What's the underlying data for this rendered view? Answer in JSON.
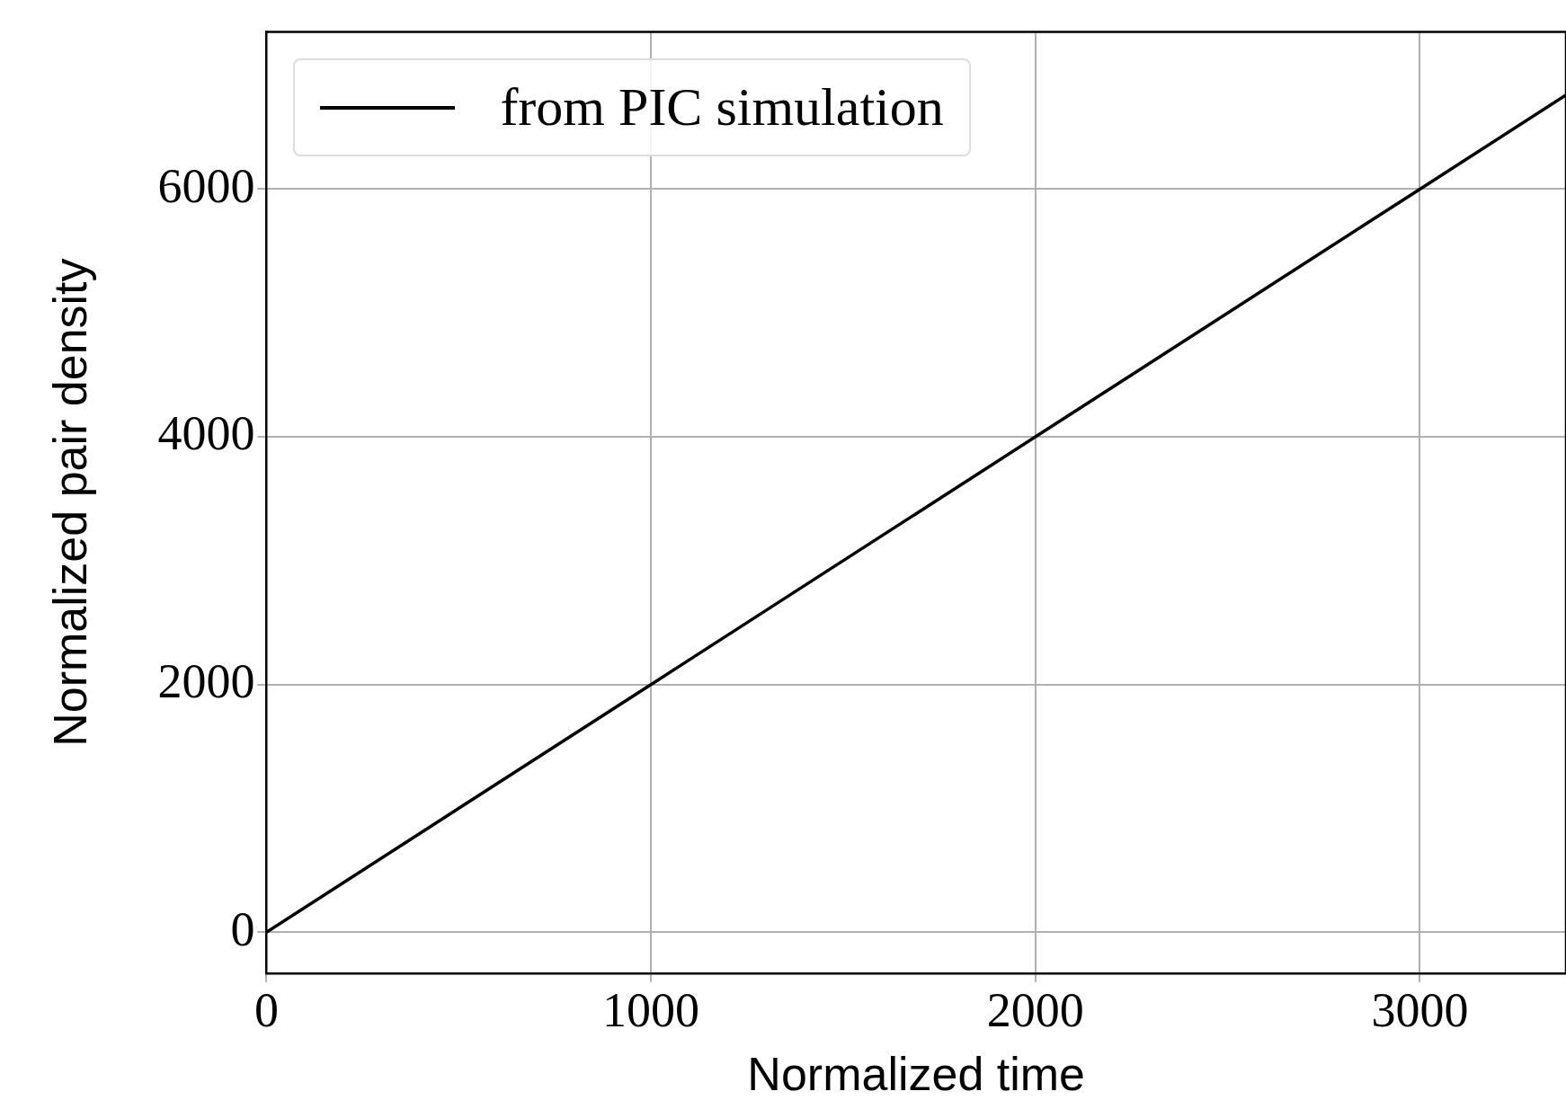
{
  "chart_data": {
    "type": "line",
    "xlabel": "Normalized time",
    "ylabel": "Normalized pair density",
    "x": [
      0,
      1000,
      2000,
      3000,
      3380
    ],
    "series": [
      {
        "name": "from PIC simulation",
        "color": "#000000",
        "values": [
          0,
          2000,
          4000,
          6000,
          6760
        ]
      }
    ],
    "xlim": [
      0,
      3380
    ],
    "ylim": [
      -330,
      7270
    ],
    "xticks": [
      0,
      1000,
      2000,
      3000
    ],
    "yticks": [
      0,
      2000,
      4000,
      6000
    ],
    "grid": true,
    "legend": "top left",
    "marker": "none",
    "line_style": "solid"
  }
}
